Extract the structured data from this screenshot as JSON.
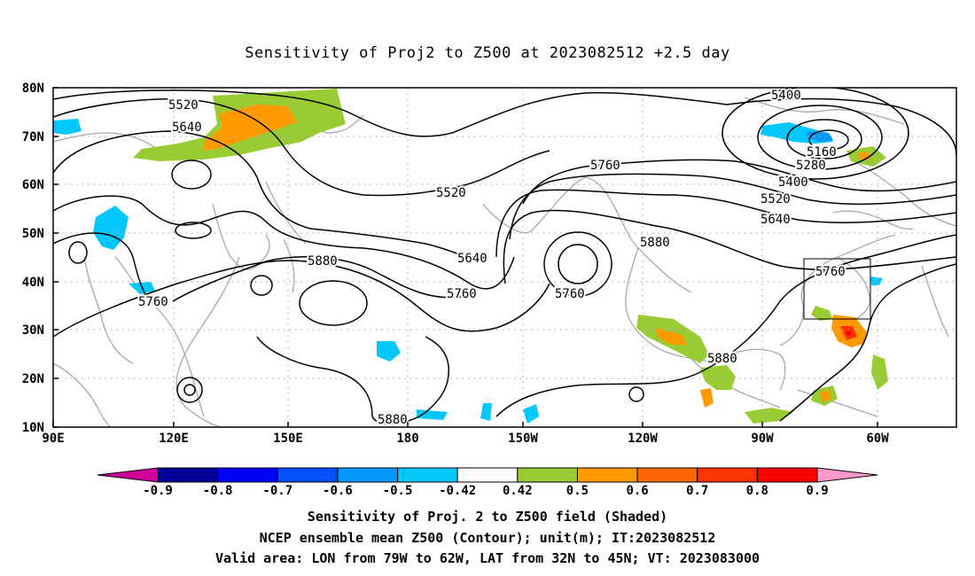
{
  "title": "Sensitivity of Proj2 to Z500 at 2023082512 +2.5 day",
  "lat_labels": [
    "80N",
    "70N",
    "60N",
    "50N",
    "40N",
    "30N",
    "20N",
    "10N"
  ],
  "lon_labels": [
    "90E",
    "120E",
    "150E",
    "180",
    "150W",
    "120W",
    "90W",
    "60W"
  ],
  "contour_labels": [
    "5520",
    "5640",
    "5520",
    "5760",
    "5400",
    "5160",
    "5280",
    "5400",
    "5520",
    "5640",
    "5880",
    "5760",
    "5640",
    "5760",
    "5760",
    "5880",
    "5760",
    "5880",
    "5880"
  ],
  "colorbar": {
    "ticks": [
      "-0.9",
      "-0.8",
      "-0.7",
      "-0.6",
      "-0.5",
      "-0.42",
      "0.42",
      "0.5",
      "0.6",
      "0.7",
      "0.8",
      "0.9"
    ],
    "colors": [
      "#000096",
      "#0000ff",
      "#0050ff",
      "#0096ff",
      "#00c8ff",
      "#ffffff",
      "#99cc33",
      "#ff9900",
      "#ff6600",
      "#ff3300",
      "#ff0000"
    ],
    "low_end_color": "#cc0099",
    "high_end_color": "#ff99cc"
  },
  "captions": [
    "Sensitivity of Proj. 2 to Z500 field (Shaded)",
    "NCEP ensemble mean Z500 (Contour); unit(m); IT:2023082512",
    "Valid area: LON from 79W to 62W, LAT from 32N to 45N; VT: 2023083000"
  ]
}
